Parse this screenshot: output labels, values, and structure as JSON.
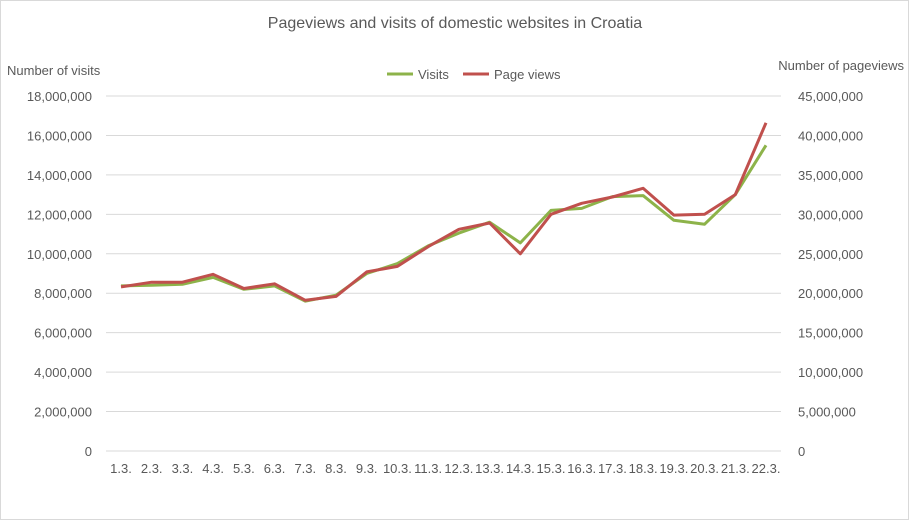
{
  "chart_data": {
    "type": "line",
    "title": "Pageviews and visits of domestic websites in Croatia",
    "ylabel": "Number of visits",
    "y2label": "Number of pageviews",
    "ylim": [
      0,
      18000000
    ],
    "y2lim": [
      0,
      45000000
    ],
    "yticks": [
      "0",
      "2,000,000",
      "4,000,000",
      "6,000,000",
      "8,000,000",
      "10,000,000",
      "12,000,000",
      "14,000,000",
      "16,000,000",
      "18,000,000"
    ],
    "y2ticks": [
      "0",
      "5,000,000",
      "10,000,000",
      "15,000,000",
      "20,000,000",
      "25,000,000",
      "30,000,000",
      "35,000,000",
      "40,000,000",
      "45,000,000"
    ],
    "categories": [
      "1.3.",
      "2.3.",
      "3.3.",
      "4.3.",
      "5.3.",
      "6.3.",
      "7.3.",
      "8.3.",
      "9.3.",
      "10.3.",
      "11.3.",
      "12.3.",
      "13.3.",
      "14.3.",
      "15.3.",
      "16.3.",
      "17.3.",
      "18.3.",
      "19.3.",
      "20.3.",
      "21.3.",
      "22.3."
    ],
    "grid": true,
    "legend_position": "top-center",
    "series": [
      {
        "name": "Visits",
        "axis": "left",
        "color": "#8db34a",
        "values": [
          8370000,
          8400000,
          8450000,
          8800000,
          8200000,
          8370000,
          7600000,
          7900000,
          9000000,
          9500000,
          10400000,
          11050000,
          11600000,
          10550000,
          12200000,
          12300000,
          12900000,
          12950000,
          11700000,
          11500000,
          13000000,
          15500000
        ]
      },
      {
        "name": "Page views",
        "axis": "right",
        "color": "#c0504d",
        "values": [
          20800000,
          21400000,
          21400000,
          22400000,
          20600000,
          21200000,
          19100000,
          19600000,
          22700000,
          23400000,
          25900000,
          28100000,
          28900000,
          25000000,
          30000000,
          31400000,
          32200000,
          33300000,
          29900000,
          30000000,
          32500000,
          41600000
        ]
      }
    ]
  }
}
